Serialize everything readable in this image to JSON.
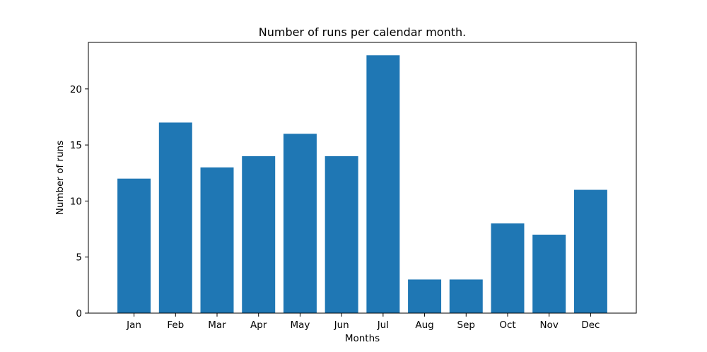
{
  "chart_data": {
    "type": "bar",
    "title": "Number of runs per calendar month.",
    "xlabel": "Months",
    "ylabel": "Number of runs",
    "categories": [
      "Jan",
      "Feb",
      "Mar",
      "Apr",
      "May",
      "Jun",
      "Jul",
      "Aug",
      "Sep",
      "Oct",
      "Nov",
      "Dec"
    ],
    "values": [
      12,
      17,
      13,
      14,
      16,
      14,
      23,
      3,
      3,
      8,
      7,
      11
    ],
    "ylim": [
      0,
      24.15
    ],
    "yticks": [
      0,
      5,
      10,
      15,
      20
    ],
    "bar_color": "#1f77b4",
    "grid": false,
    "legend": "none"
  }
}
